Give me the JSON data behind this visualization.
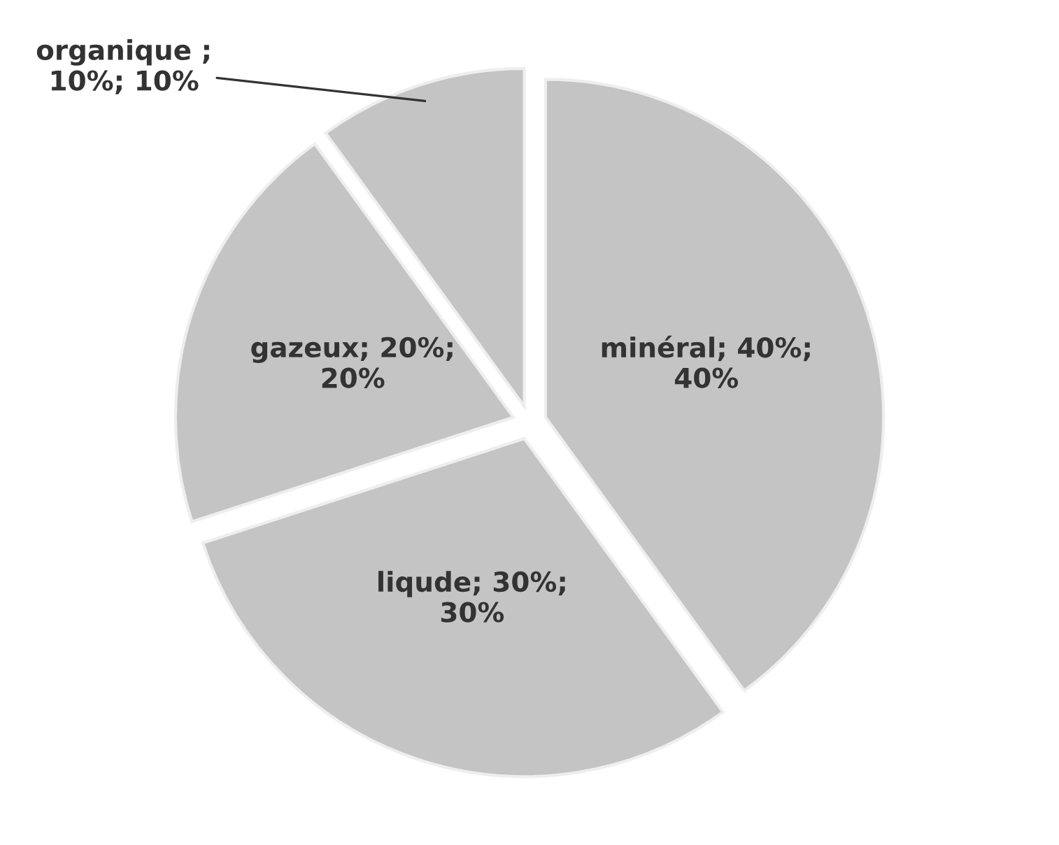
{
  "chart_data": {
    "type": "pie",
    "categories": [
      "minéral; 40%;\n40%",
      "liqude; 30%;\n30%",
      "gazeux; 20%;\n20%",
      "organique ;\n10%; 10%"
    ],
    "values": [
      40,
      30,
      20,
      10
    ],
    "colors": [
      "#c4c4c4",
      "#c4c4c4",
      "#c4c4c4",
      "#c4c4c4"
    ]
  }
}
